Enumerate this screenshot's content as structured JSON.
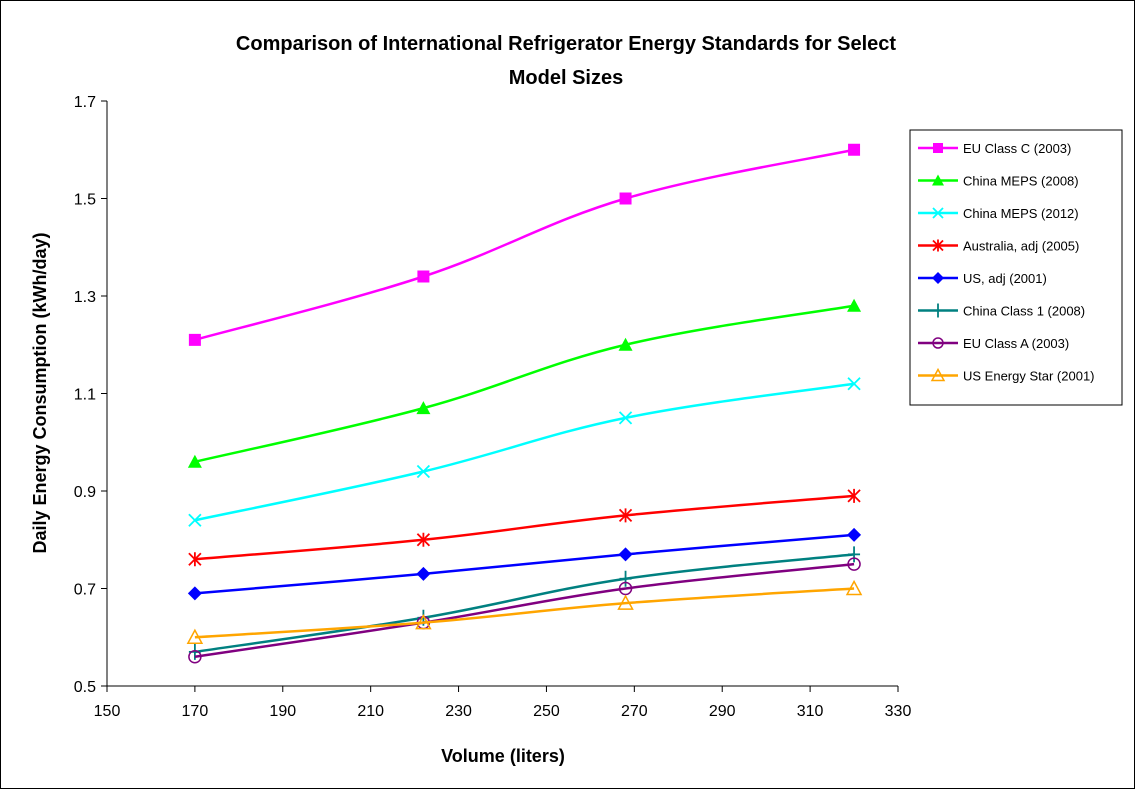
{
  "chart_data": {
    "type": "line",
    "title_line1": "Comparison of International Refrigerator Energy Standards for Select",
    "title_line2": "Model Sizes",
    "xlabel": "Volume (liters)",
    "ylabel": "Daily Energy Consumption (kWh/day)",
    "xlim": [
      150,
      330
    ],
    "ylim": [
      0.5,
      1.7
    ],
    "xticks": [
      "150",
      "170",
      "190",
      "210",
      "230",
      "250",
      "270",
      "290",
      "310",
      "330"
    ],
    "yticks": [
      "0.5",
      "0.7",
      "0.9",
      "1.1",
      "1.3",
      "1.5",
      "1.7"
    ],
    "grid": false,
    "legend_position": "right",
    "x": [
      170,
      222,
      268,
      320
    ],
    "series": [
      {
        "name": "EU Class C (2003)",
        "color": "#FF00FF",
        "marker": "square",
        "values": [
          1.21,
          1.34,
          1.5,
          1.6
        ]
      },
      {
        "name": "China MEPS (2008)",
        "color": "#00FF00",
        "marker": "triangle",
        "values": [
          0.96,
          1.07,
          1.2,
          1.28
        ]
      },
      {
        "name": "China MEPS (2012)",
        "color": "#00FFFF",
        "marker": "x",
        "values": [
          0.84,
          0.94,
          1.05,
          1.12
        ]
      },
      {
        "name": "Australia, adj (2005)",
        "color": "#FF0000",
        "marker": "star",
        "values": [
          0.76,
          0.8,
          0.85,
          0.89
        ]
      },
      {
        "name": "US, adj (2001)",
        "color": "#0000FF",
        "marker": "diamond",
        "values": [
          0.69,
          0.73,
          0.77,
          0.81
        ]
      },
      {
        "name": "China Class 1 (2008)",
        "color": "#008080",
        "marker": "plus",
        "values": [
          0.57,
          0.64,
          0.72,
          0.77
        ]
      },
      {
        "name": "EU Class A (2003)",
        "color": "#800080",
        "marker": "circle-open",
        "values": [
          0.56,
          0.63,
          0.7,
          0.75
        ]
      },
      {
        "name": "US Energy Star (2001)",
        "color": "#FFA500",
        "marker": "triangle-open",
        "values": [
          0.6,
          0.63,
          0.67,
          0.7
        ]
      }
    ]
  }
}
